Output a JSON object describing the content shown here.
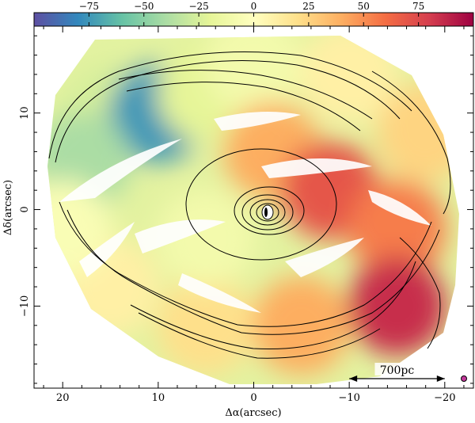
{
  "chart_data": {
    "type": "heatmap",
    "title": "",
    "xlabel": "Δα(arcsec)",
    "ylabel": "Δδ(arcsec)",
    "xlim": [
      23,
      -23
    ],
    "ylim": [
      -18.5,
      19
    ],
    "x_ticks": [
      20,
      10,
      0,
      -10,
      -20
    ],
    "x_tick_labels": [
      "20",
      "10",
      "0",
      "−10",
      "−20"
    ],
    "y_ticks": [
      10,
      0,
      -10
    ],
    "y_tick_labels": [
      "10",
      "0",
      "−10"
    ],
    "colorbar": {
      "orientation": "horizontal",
      "position": "top",
      "range": [
        -100,
        100
      ],
      "ticks": [
        -75,
        -50,
        -25,
        0,
        25,
        50,
        75
      ],
      "tick_labels": [
        "−75",
        "−50",
        "−25",
        "0",
        "25",
        "50",
        "75"
      ],
      "colormap": [
        "#5e4fa2",
        "#3288bd",
        "#66c2a5",
        "#abdda4",
        "#e6f598",
        "#ffffbf",
        "#fee08b",
        "#fdae61",
        "#f46d43",
        "#d53e4f",
        "#9e0142"
      ]
    },
    "scale_bar": {
      "label": "700pc",
      "x_from": -10,
      "x_to": -20
    },
    "velocity_regions": [
      {
        "x": 15,
        "y": 10,
        "value": -25
      },
      {
        "x": 10,
        "y": 10,
        "value": -75
      },
      {
        "x": 18,
        "y": 5,
        "value": -40
      },
      {
        "x": 5,
        "y": 12,
        "value": -20
      },
      {
        "x": 0,
        "y": 15,
        "value": -10
      },
      {
        "x": -10,
        "y": 14,
        "value": 10
      },
      {
        "x": -18,
        "y": 8,
        "value": 25
      },
      {
        "x": -2,
        "y": 6,
        "value": 40
      },
      {
        "x": -8,
        "y": 2,
        "value": 70
      },
      {
        "x": -15,
        "y": -2,
        "value": 55
      },
      {
        "x": -15,
        "y": -10,
        "value": 85
      },
      {
        "x": -5,
        "y": -12,
        "value": 40
      },
      {
        "x": 5,
        "y": -12,
        "value": 20
      },
      {
        "x": 15,
        "y": -8,
        "value": 10
      },
      {
        "x": 5,
        "y": -3,
        "value": -10
      },
      {
        "x": 20,
        "y": -2,
        "value": -5
      }
    ]
  }
}
